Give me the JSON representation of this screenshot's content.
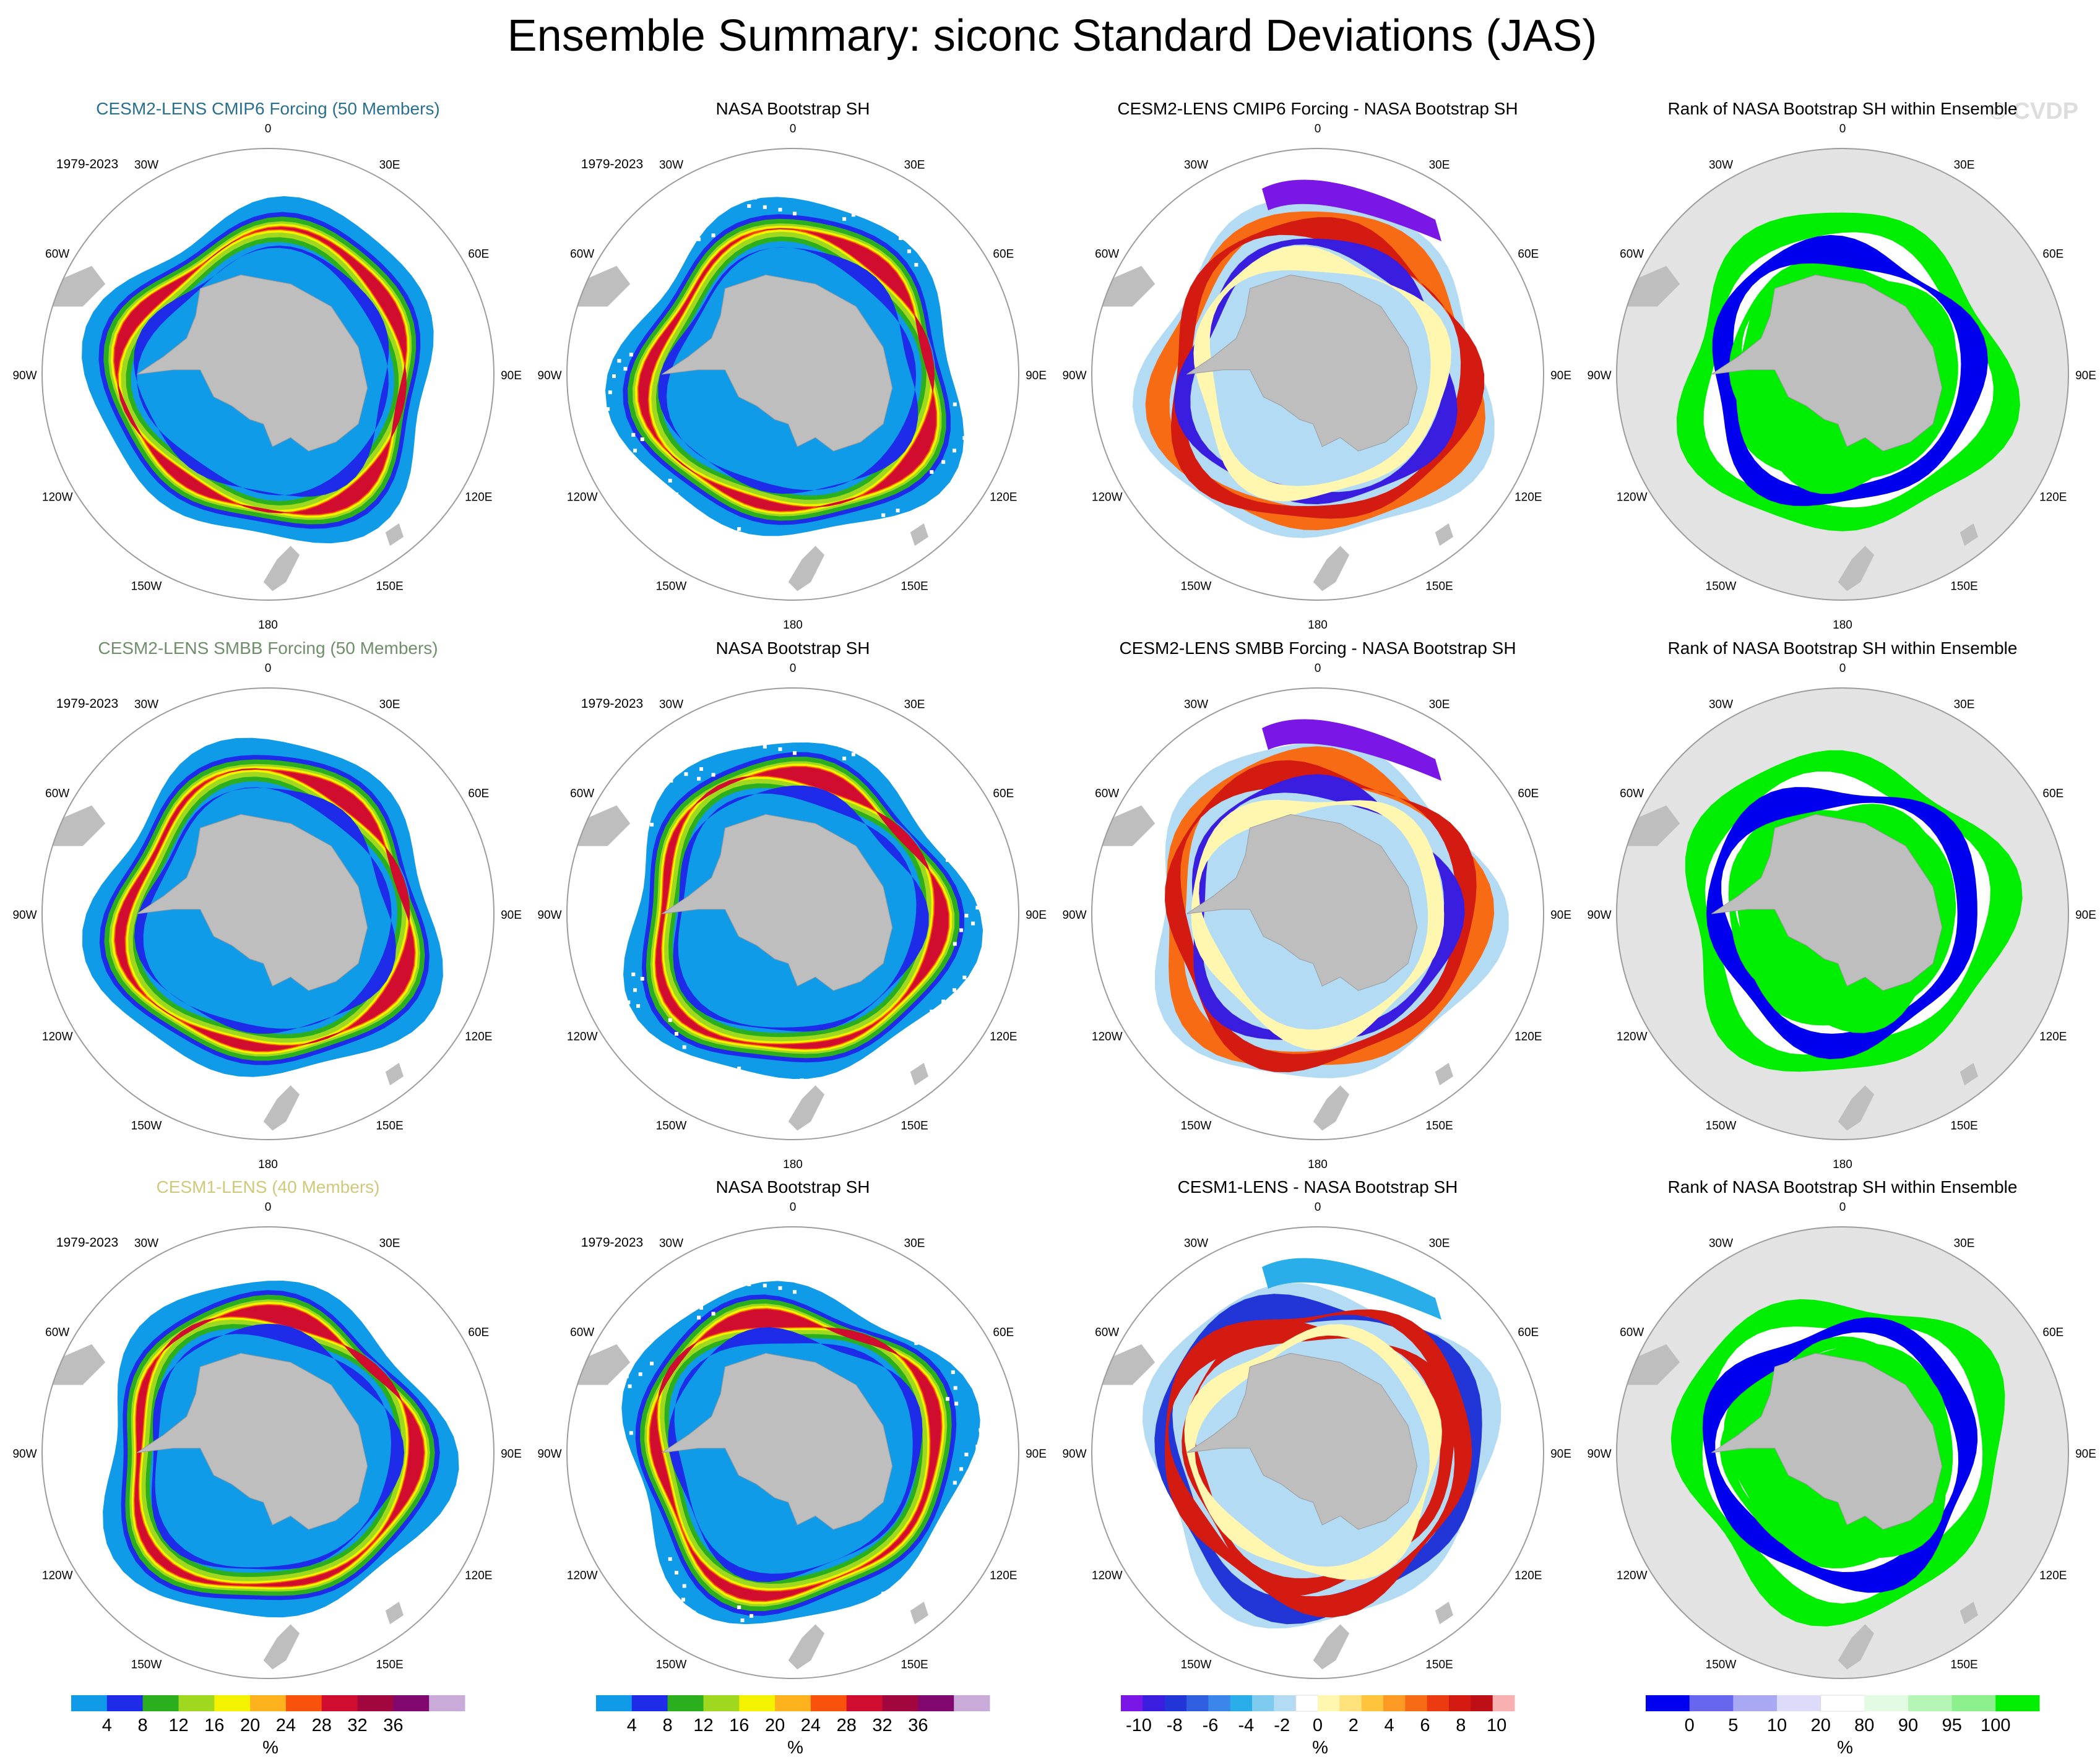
{
  "title": "Ensemble Summary: siconc Standard Deviations (JAS)",
  "watermark": "© CVDP",
  "period": "1979-2023",
  "lon_labels": [
    "0",
    "30E",
    "60E",
    "90E",
    "120E",
    "150E",
    "180",
    "150W",
    "120W",
    "90W",
    "60W",
    "30W"
  ],
  "rows": [
    {
      "titles": [
        "CESM2-LENS CMIP6 Forcing (50 Members)",
        "NASA Bootstrap SH",
        "CESM2-LENS CMIP6 Forcing - NASA Bootstrap SH",
        "Rank of NASA Bootstrap SH within Ensemble"
      ],
      "title_color": "#2b6f8e",
      "diff_sign": 1
    },
    {
      "titles": [
        "CESM2-LENS SMBB Forcing (50 Members)",
        "NASA Bootstrap SH",
        "CESM2-LENS SMBB Forcing - NASA Bootstrap SH",
        "Rank of NASA Bootstrap SH within Ensemble"
      ],
      "title_color": "#6f8f6a",
      "diff_sign": 1
    },
    {
      "titles": [
        "CESM1-LENS (40 Members)",
        "NASA Bootstrap SH",
        "CESM1-LENS - NASA Bootstrap SH",
        "Rank of NASA Bootstrap SH within Ensemble"
      ],
      "title_color": "#d2c87a",
      "diff_sign": -1
    }
  ],
  "colorbars": [
    {
      "unit": "%",
      "labels": [
        "4",
        "8",
        "12",
        "16",
        "20",
        "24",
        "28",
        "32",
        "36"
      ],
      "colors": [
        "#109be8",
        "#1e2be8",
        "#2caf1f",
        "#9fd81e",
        "#f5f200",
        "#fdb21e",
        "#f8520d",
        "#d00d2f",
        "#a1063f",
        "#81086f",
        "#c9aad9"
      ]
    },
    {
      "unit": "%",
      "labels": [
        "4",
        "8",
        "12",
        "16",
        "20",
        "24",
        "28",
        "32",
        "36"
      ],
      "colors": [
        "#109be8",
        "#1e2be8",
        "#2caf1f",
        "#9fd81e",
        "#f5f200",
        "#fdb21e",
        "#f8520d",
        "#d00d2f",
        "#a1063f",
        "#81086f",
        "#c9aad9"
      ]
    },
    {
      "unit": "%",
      "labels": [
        "-10",
        "-8",
        "-6",
        "-4",
        "-2",
        "0",
        "2",
        "4",
        "6",
        "8",
        "10"
      ],
      "colors": [
        "#7a17e6",
        "#3a1ee0",
        "#2236d8",
        "#2f5fdf",
        "#3b86ea",
        "#29aee9",
        "#7fcaef",
        "#b4dbf4",
        "#ffffff",
        "#fff6b0",
        "#ffe27a",
        "#ffc33c",
        "#fd9a24",
        "#f86b15",
        "#ec3b10",
        "#d31b12",
        "#bf0f16",
        "#f7b1b1"
      ]
    },
    {
      "unit": "%",
      "labels": [
        "0",
        "5",
        "10",
        "20",
        "80",
        "90",
        "95",
        "100"
      ],
      "colors": [
        "#0000ee",
        "#6666ef",
        "#a9a9f3",
        "#dcdcfa",
        "#ffffff",
        "#e2fbe2",
        "#b5f5b5",
        "#8cf08c",
        "#00ee00"
      ]
    }
  ],
  "colors": {
    "land": "#bebebe",
    "rank_bg": "#e3e3e3",
    "circle": "#9c9c9c"
  }
}
